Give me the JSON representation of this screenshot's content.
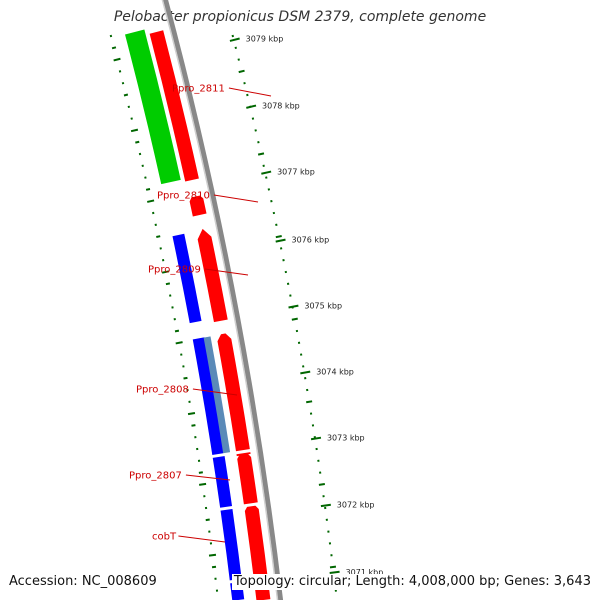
{
  "title": "Pelobacter propionicus DSM 2379, complete genome",
  "footer": {
    "accession": "Accession: NC_008609",
    "topology": "Topology: circular; Length: 4,008,000 bp; Genes: 3,643"
  },
  "colors": {
    "forward_cds": "#00cc00",
    "reverse_cds": "#0000ff",
    "rna_feature": "#5a8ab8",
    "orf": "#ff0000",
    "backbone": "#888888",
    "gc_ticks": "#006600",
    "label_line": "#cc0000"
  },
  "scale_ticks": [
    "3079 kbp",
    "3078 kbp",
    "3077 kbp",
    "3076 kbp",
    "3075 kbp",
    "3074 kbp",
    "3073 kbp",
    "3072 kbp",
    "3071 kbp"
  ],
  "gene_labels": [
    "Ppro_2811",
    "Ppro_2810",
    "Ppro_2809",
    "Ppro_2808",
    "Ppro_2807",
    "cobT"
  ]
}
